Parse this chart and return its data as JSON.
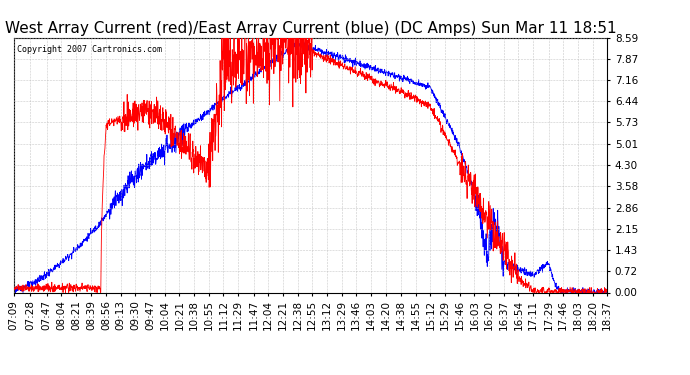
{
  "title": "West Array Current (red)/East Array Current (blue) (DC Amps) Sun Mar 11 18:51",
  "copyright": "Copyright 2007 Cartronics.com",
  "yticks": [
    0.0,
    0.72,
    1.43,
    2.15,
    2.86,
    3.58,
    4.3,
    5.01,
    5.73,
    6.44,
    7.16,
    7.87,
    8.59
  ],
  "ymax": 8.59,
  "ymin": 0.0,
  "xtick_labels": [
    "07:09",
    "07:28",
    "07:47",
    "08:04",
    "08:21",
    "08:39",
    "08:56",
    "09:13",
    "09:30",
    "09:47",
    "10:04",
    "10:21",
    "10:38",
    "10:55",
    "11:12",
    "11:29",
    "11:47",
    "12:04",
    "12:21",
    "12:38",
    "12:55",
    "13:12",
    "13:29",
    "13:46",
    "14:03",
    "14:20",
    "14:38",
    "14:55",
    "15:12",
    "15:29",
    "15:46",
    "16:03",
    "16:20",
    "16:37",
    "16:54",
    "17:11",
    "17:29",
    "17:46",
    "18:03",
    "18:20",
    "18:37"
  ],
  "background_color": "#ffffff",
  "grid_color": "#bbbbbb",
  "red_line_color": "#ff0000",
  "blue_line_color": "#0000ff",
  "title_fontsize": 11,
  "tick_fontsize": 7.5
}
